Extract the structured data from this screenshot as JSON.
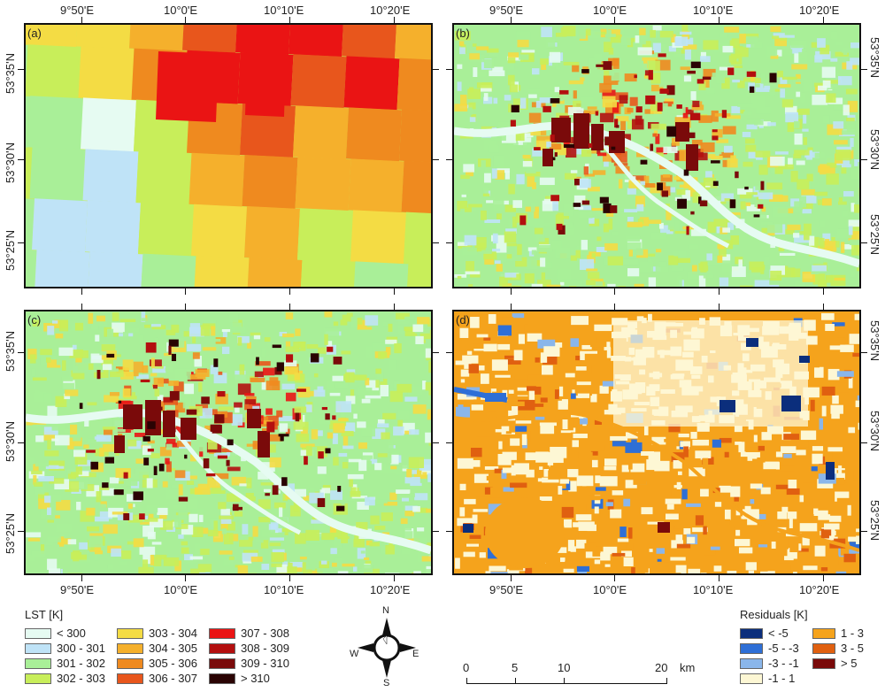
{
  "panels": [
    {
      "label": "(a)"
    },
    {
      "label": "(b)"
    },
    {
      "label": "(c)"
    },
    {
      "label": "(d)"
    }
  ],
  "lon_ticks": [
    "9°50'E",
    "10°0'E",
    "10°10'E",
    "10°20'E"
  ],
  "lat_ticks": [
    "53°35'N",
    "53°30'N",
    "53°25'N"
  ],
  "lst_legend": {
    "title": "LST [K]",
    "items": [
      {
        "label": "< 300",
        "color": "#e6fbf2"
      },
      {
        "label": "300 - 301",
        "color": "#bfe3f7"
      },
      {
        "label": "301 - 302",
        "color": "#a9ef98"
      },
      {
        "label": "302 - 303",
        "color": "#c8ee5a"
      },
      {
        "label": "303 - 304",
        "color": "#f4dc44"
      },
      {
        "label": "304 - 305",
        "color": "#f5b02c"
      },
      {
        "label": "305 - 306",
        "color": "#ef8a1f"
      },
      {
        "label": "306 - 307",
        "color": "#e8561c"
      },
      {
        "label": "307 - 308",
        "color": "#ea1414"
      },
      {
        "label": "308 - 309",
        "color": "#b30f0f"
      },
      {
        "label": "309 - 310",
        "color": "#7a0a0a"
      },
      {
        "label": "> 310",
        "color": "#2a0303"
      }
    ]
  },
  "residual_legend": {
    "title": "Residuals [K]",
    "items": [
      {
        "label": "< -5",
        "color": "#0b2e7c"
      },
      {
        "label": "-5 - -3",
        "color": "#2e6fd6"
      },
      {
        "label": "-3 - -1",
        "color": "#8ab6ea"
      },
      {
        "label": "-1 - 1",
        "color": "#fdf7d4"
      },
      {
        "label": "1 - 3",
        "color": "#f5a31c"
      },
      {
        "label": "3 - 5",
        "color": "#e06010"
      },
      {
        "label": "> 5",
        "color": "#7a0a0a"
      }
    ]
  },
  "north_arrow": {
    "n": "N",
    "s": "S",
    "e": "E",
    "w": "W"
  },
  "scale_bar": {
    "labels": [
      "0",
      "5",
      "10",
      "20"
    ],
    "unit": "km"
  }
}
